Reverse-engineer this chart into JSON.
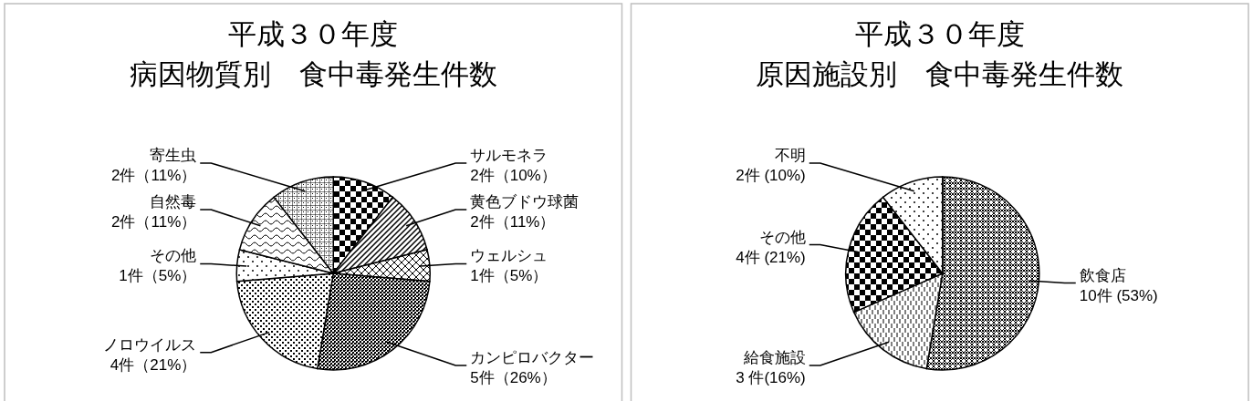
{
  "chart_data": [
    {
      "type": "pie",
      "title": "平成３０年度",
      "subtitle": "病因物質別　食中毒発生件数",
      "categories": [
        "サルモネラ",
        "黄色ブドウ球菌",
        "ウェルシュ",
        "カンピロバクター",
        "ノロウイルス",
        "その他",
        "自然毒",
        "寄生虫"
      ],
      "values": [
        2,
        2,
        1,
        5,
        4,
        1,
        2,
        2
      ],
      "value_labels": [
        "2件（10%）",
        "2件（11%）",
        "1件（5%）",
        "5件（26%）",
        "4件（21%）",
        "1件（5%）",
        "2件（11%）",
        "2件（11%）"
      ]
    },
    {
      "type": "pie",
      "title": "平成３０年度",
      "subtitle": "原因施設別　食中毒発生件数",
      "categories": [
        "飲食店",
        "給食施設",
        "その他",
        "不明"
      ],
      "values": [
        10,
        3,
        4,
        2
      ],
      "value_labels": [
        "10件 (53%)",
        "3 件(16%)",
        "4件 (21%)",
        "2件 (10%)"
      ]
    }
  ]
}
